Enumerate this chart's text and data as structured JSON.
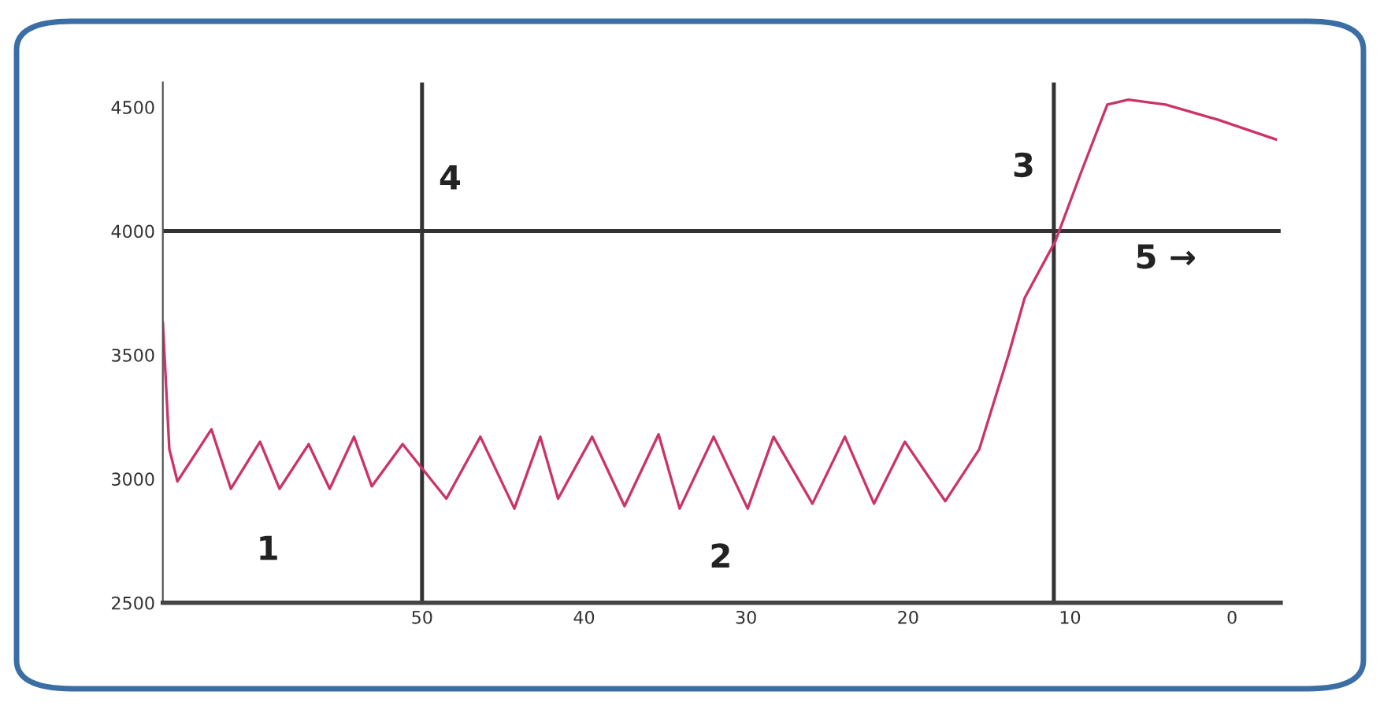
{
  "chart_data": {
    "type": "line",
    "x": [
      66.0,
      65.6,
      65.1,
      63.0,
      61.8,
      60.0,
      58.8,
      57.0,
      55.7,
      54.2,
      53.1,
      51.2,
      48.5,
      46.4,
      44.3,
      42.7,
      41.6,
      39.5,
      37.5,
      35.4,
      34.1,
      32.0,
      29.9,
      28.3,
      25.9,
      23.9,
      22.1,
      20.2,
      17.7,
      15.6,
      13.8,
      12.8,
      10.9,
      9.3,
      7.7,
      6.4,
      4.1,
      0.9,
      -2.7
    ],
    "series": [
      {
        "color": "#cc3366",
        "values": [
          3630,
          3120,
          2990,
          3200,
          2960,
          3150,
          2960,
          3140,
          2960,
          3170,
          2970,
          3140,
          2920,
          3170,
          2880,
          3170,
          2920,
          3170,
          2890,
          3180,
          2880,
          3170,
          2880,
          3170,
          2900,
          3170,
          2900,
          3150,
          2910,
          3120,
          3500,
          3730,
          3960,
          4240,
          4510,
          4530,
          4510,
          4450,
          4370
        ]
      }
    ],
    "xlim": [
      66,
      -3
    ],
    "ylim": [
      2500,
      4600
    ],
    "xticks": [
      50,
      40,
      30,
      20,
      10,
      0
    ],
    "yticks": [
      2500,
      3000,
      3500,
      4000,
      4500
    ],
    "ref_lines": [
      {
        "axis": "x",
        "value": 50,
        "color": "#333333"
      },
      {
        "axis": "x",
        "value": 11,
        "color": "#333333"
      },
      {
        "axis": "y",
        "value": 4000,
        "color": "#333333"
      }
    ],
    "annotations": [
      "1",
      "2",
      "3",
      "4",
      "5 →"
    ],
    "grid": false,
    "legend": false
  }
}
